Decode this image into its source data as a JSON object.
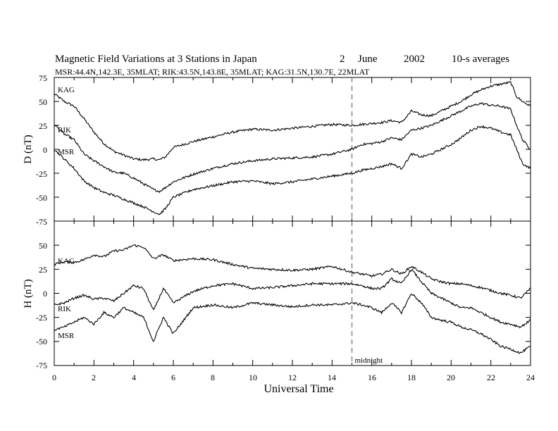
{
  "header": {
    "title": "Magnetic Field Variations at 3 Stations in Japan",
    "day": "2",
    "month": "June",
    "year": "2002",
    "averaging": "10-s averages",
    "stations_line": "MSR:44.4N,142.3E, 35MLAT;  RIK:43.5N,143.8E, 35MLAT;  KAG:31.5N,130.7E, 22MLAT"
  },
  "chart_data": [
    {
      "type": "line",
      "component": "D",
      "ylabel": "D (nT)",
      "ylim": [
        -75,
        75
      ],
      "yticks": [
        "75",
        "50",
        "25",
        "0",
        "-25",
        "-50",
        "-75"
      ],
      "x": [
        0,
        0.5,
        1,
        1.5,
        2,
        2.5,
        3,
        3.5,
        4,
        4.5,
        5,
        5.3,
        5.6,
        6,
        7,
        8,
        9,
        10,
        11,
        12,
        13,
        14,
        15,
        15.5,
        16,
        16.5,
        17,
        17.5,
        18,
        18.5,
        19,
        19.5,
        20,
        20.5,
        21,
        21.5,
        22,
        22.5,
        23,
        23.3,
        23.6,
        24
      ],
      "series": [
        {
          "name": "KAG",
          "values": [
            58,
            50,
            45,
            32,
            18,
            6,
            -2,
            -6,
            -10,
            -11,
            -10,
            -11,
            -8,
            2,
            8,
            13,
            18,
            21,
            20,
            22,
            24,
            26,
            25,
            26,
            27,
            28,
            30,
            28,
            40,
            36,
            35,
            40,
            45,
            50,
            57,
            62,
            66,
            68,
            70,
            55,
            50,
            45
          ]
        },
        {
          "name": "RIK",
          "values": [
            26,
            16,
            10,
            -5,
            -12,
            -18,
            -24,
            -25,
            -30,
            -36,
            -42,
            -44,
            -40,
            -34,
            -26,
            -20,
            -15,
            -12,
            -10,
            -9,
            -8,
            -5,
            0,
            5,
            6,
            8,
            12,
            10,
            20,
            22,
            25,
            30,
            35,
            40,
            45,
            48,
            46,
            45,
            42,
            25,
            10,
            0
          ]
        },
        {
          "name": "MSR",
          "values": [
            0,
            -10,
            -20,
            -33,
            -40,
            -45,
            -48,
            -52,
            -56,
            -60,
            -65,
            -68,
            -62,
            -50,
            -42,
            -38,
            -34,
            -33,
            -36,
            -34,
            -31,
            -28,
            -25,
            -22,
            -20,
            -18,
            -15,
            -20,
            -5,
            -8,
            -5,
            0,
            5,
            12,
            20,
            24,
            22,
            18,
            15,
            0,
            -15,
            -20
          ]
        }
      ],
      "labels": [
        "KAG",
        "RIK",
        "MSR"
      ]
    },
    {
      "type": "line",
      "component": "H",
      "ylabel": "H (nT)",
      "ylim": [
        -75,
        75
      ],
      "yticks": [
        "50",
        "25",
        "0",
        "-25",
        "-50",
        "-75"
      ],
      "x": [
        0,
        0.5,
        1,
        1.5,
        2,
        2.5,
        3,
        3.5,
        4,
        4.5,
        5,
        5.5,
        6,
        7,
        8,
        9,
        10,
        11,
        12,
        13,
        14,
        15,
        15.5,
        16,
        16.5,
        17,
        17.5,
        18,
        18.5,
        19,
        19.5,
        20,
        20.5,
        21,
        21.5,
        22,
        22.5,
        23,
        23.5,
        24
      ],
      "series": [
        {
          "name": "KAG",
          "values": [
            30,
            33,
            32,
            35,
            40,
            38,
            44,
            45,
            50,
            48,
            36,
            40,
            34,
            36,
            35,
            30,
            26,
            25,
            24,
            25,
            28,
            22,
            20,
            18,
            20,
            25,
            20,
            28,
            22,
            15,
            12,
            10,
            10,
            8,
            6,
            3,
            0,
            -2,
            -5,
            5
          ]
        },
        {
          "name": "RIK",
          "values": [
            -12,
            -10,
            -5,
            -2,
            -6,
            -5,
            -8,
            0,
            8,
            5,
            -18,
            5,
            -10,
            2,
            8,
            10,
            5,
            6,
            8,
            10,
            10,
            10,
            8,
            5,
            5,
            15,
            10,
            25,
            12,
            0,
            -5,
            -10,
            -15,
            -15,
            -20,
            -25,
            -30,
            -32,
            -35,
            -28
          ]
        },
        {
          "name": "MSR",
          "values": [
            -38,
            -35,
            -30,
            -25,
            -32,
            -20,
            -25,
            -15,
            -20,
            -25,
            -50,
            -25,
            -42,
            -15,
            -12,
            -15,
            -10,
            -12,
            -14,
            -12,
            -12,
            -10,
            -12,
            -15,
            -20,
            -10,
            -20,
            0,
            -10,
            -25,
            -28,
            -30,
            -35,
            -38,
            -42,
            -48,
            -55,
            -58,
            -62,
            -55
          ]
        }
      ],
      "labels": [
        "KAG",
        "RIK",
        "MSR"
      ]
    }
  ],
  "x_axis": {
    "label": "Universal Time",
    "xlim": [
      0,
      24
    ],
    "ticks": [
      "0",
      "2",
      "4",
      "6",
      "8",
      "10",
      "12",
      "14",
      "16",
      "18",
      "20",
      "22",
      "24"
    ]
  },
  "midnight_marker": {
    "x": 15,
    "label": "midnight"
  }
}
